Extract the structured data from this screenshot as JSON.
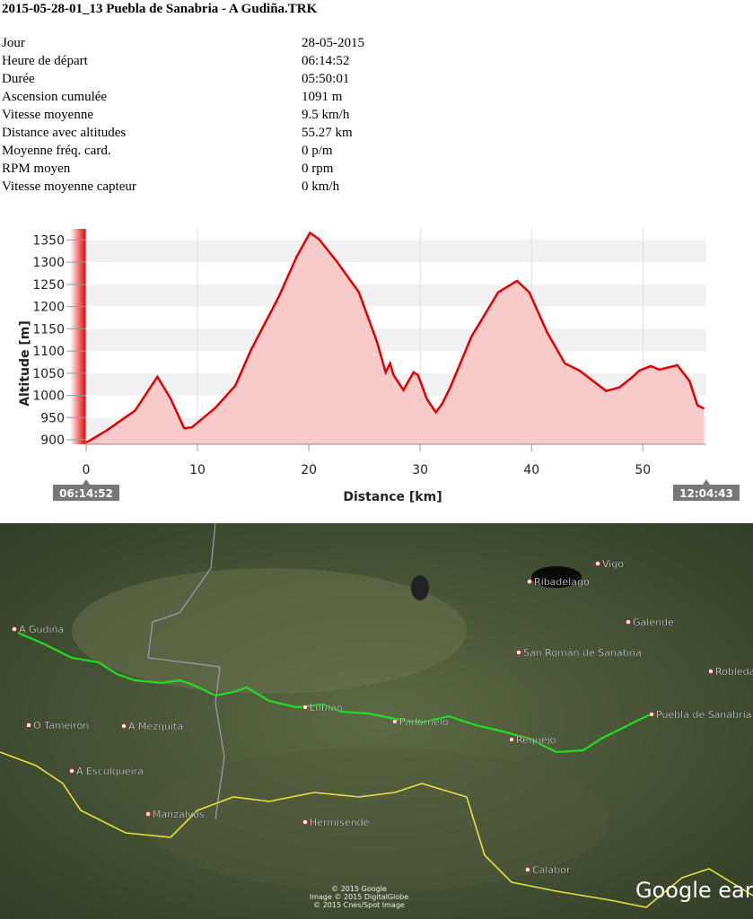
{
  "header": {
    "title": "2015-05-28-01_13 Puebla de Sanabria - A Gudiña.TRK"
  },
  "table": {
    "rows": [
      [
        "Jour",
        "28-05-2015"
      ],
      [
        "Heure de départ",
        "06:14:52"
      ],
      [
        "Durée",
        "05:50:01"
      ],
      [
        "Ascension cumulée",
        "1091 m"
      ],
      [
        "Vitesse moyenne",
        "9.5 km/h"
      ],
      [
        "Distance avec altitudes",
        "55.27 km"
      ],
      [
        "Moyenne fréq. card.",
        "0 p/m"
      ],
      [
        "RPM moyen",
        "0 rpm"
      ],
      [
        "Vitesse moyenne capteur",
        "0 km/h"
      ]
    ]
  },
  "chart_data": {
    "type": "area",
    "x_label": "Distance [km]",
    "y_label": "Altitude [m]",
    "start_label": "06:14:52",
    "end_label": "12:04:43",
    "color": "#e00000",
    "fill": "#f9caca",
    "grid": true,
    "xlim": [
      0,
      55.7
    ],
    "ylim": [
      890,
      1375
    ],
    "xticks": [
      0,
      10,
      20,
      30,
      40,
      50
    ],
    "yticks": [
      900,
      950,
      1000,
      1050,
      1100,
      1150,
      1200,
      1250,
      1300,
      1350
    ],
    "x": [
      0,
      0.3,
      1.9,
      4.4,
      6.4,
      7.6,
      8.8,
      9.5,
      11.6,
      13.4,
      14.8,
      17.3,
      18.9,
      20.1,
      20.9,
      22.5,
      24.5,
      26.1,
      26.9,
      27.3,
      27.6,
      28.5,
      29.4,
      29.8,
      30.6,
      31.4,
      32.0,
      32.7,
      34.6,
      37.0,
      38.7,
      39.8,
      41.4,
      43.0,
      44.3,
      46.7,
      47.9,
      49.1,
      49.7,
      50.7,
      51.5,
      53.1,
      54.2,
      54.9,
      55.5
    ],
    "values": [
      894,
      898,
      922,
      966,
      1042,
      992,
      926,
      928,
      972,
      1022,
      1102,
      1222,
      1312,
      1366,
      1352,
      1302,
      1232,
      1122,
      1052,
      1072,
      1046,
      1012,
      1052,
      1046,
      992,
      962,
      982,
      1018,
      1132,
      1232,
      1258,
      1232,
      1142,
      1072,
      1056,
      1010,
      1018,
      1042,
      1056,
      1066,
      1058,
      1068,
      1032,
      978,
      970
    ]
  },
  "map": {
    "labels": [
      "Vigo",
      "Ribadelago",
      "Galende",
      "A Gudiña",
      "San Román de Sanabria",
      "Robleda",
      "Lubián",
      "Padornelo",
      "Puebla de Sanabria",
      "O Tameirón",
      "A Mezquita",
      "Requejo",
      "A Esculqueira",
      "Manzalvos",
      "Hermisende",
      "Calabor"
    ],
    "logo": "Google earth",
    "credits": [
      "© 2015 Google",
      "Image © 2015 DigitalGlobe",
      "© 2015 Cnes/Spot Image"
    ]
  }
}
